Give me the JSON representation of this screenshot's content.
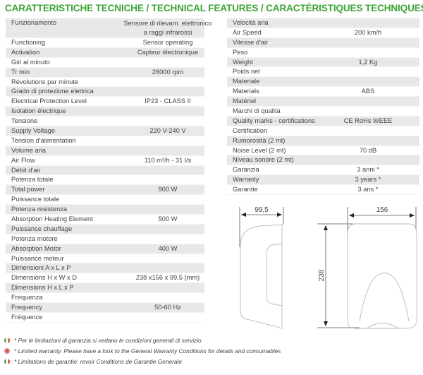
{
  "title": "CARATTERISTICHE TECNICHE / TECHNICAL FEATURES / CARACTÉRISTIQUES TECHNIQUES",
  "left_table": [
    {
      "label": "Funzionamento",
      "value": "Sensore di rilevam. elettronico\na raggi infrarossi"
    },
    {
      "label": "Functioning",
      "value": "Sensor operating"
    },
    {
      "label": "Activation",
      "value": "Capteur électronique"
    },
    {
      "label": "Giri al minuto",
      "value": ""
    },
    {
      "label": "Tr min",
      "value": "28000 rpm"
    },
    {
      "label": "Révolutions par minute",
      "value": ""
    },
    {
      "label": "Grado di protezione elettrica",
      "value": ""
    },
    {
      "label": "Electrical Protection Level",
      "value": "IP23 - CLASS II"
    },
    {
      "label": "Isolation électrique",
      "value": ""
    },
    {
      "label": "Tensione",
      "value": ""
    },
    {
      "label": "Supply Voltage",
      "value": "220 V-240 V"
    },
    {
      "label": "Tension d'alimentation",
      "value": ""
    },
    {
      "label": "Volume aria",
      "value": ""
    },
    {
      "label": "Air Flow",
      "value": "110 m³/h - 31 l/s"
    },
    {
      "label": "Débit d'air",
      "value": ""
    },
    {
      "label": "Potenza totale",
      "value": ""
    },
    {
      "label": "Total power",
      "value": "900 W"
    },
    {
      "label": "Puissance totale",
      "value": ""
    },
    {
      "label": "Potenza resistenza",
      "value": ""
    },
    {
      "label": "Absorption Heating Element",
      "value": "500 W"
    },
    {
      "label": "Puissance chauffage",
      "value": ""
    },
    {
      "label": "Potenza motore",
      "value": ""
    },
    {
      "label": "Absorption Motor",
      "value": "400 W"
    },
    {
      "label": "Puissance moteur",
      "value": ""
    },
    {
      "label": "Dimensioni A x L x P",
      "value": ""
    },
    {
      "label": "Dimensions H x W x D",
      "value": "238 x156 x 99,5 (mm)"
    },
    {
      "label": "Dimensions H x L x P",
      "value": ""
    },
    {
      "label": "Frequenza",
      "value": ""
    },
    {
      "label": "Frequency",
      "value": "50-60 Hz"
    },
    {
      "label": "Fréquence",
      "value": ""
    }
  ],
  "right_table": [
    {
      "label": "Velocità aria",
      "value": ""
    },
    {
      "label": "Air Speed",
      "value": "200 km/h"
    },
    {
      "label": "Vitesse d'air",
      "value": ""
    },
    {
      "label": "Peso",
      "value": ""
    },
    {
      "label": "Weight",
      "value": "1,2 Kg"
    },
    {
      "label": "Poids net",
      "value": ""
    },
    {
      "label": "Materiale",
      "value": ""
    },
    {
      "label": "Materials",
      "value": "ABS"
    },
    {
      "label": "Matériel",
      "value": ""
    },
    {
      "label": "Marchi di qualità",
      "value": ""
    },
    {
      "label": "Quality marks - certifications",
      "value": "CE RoHs WEEE"
    },
    {
      "label": "Certification",
      "value": ""
    },
    {
      "label": "Rumorosità (2 mt)",
      "value": ""
    },
    {
      "label": "Noise Level (2 mt)",
      "value": "70 dB"
    },
    {
      "label": "Niveau sonore (2 mt)",
      "value": ""
    },
    {
      "label": "Garanzia",
      "value": "3 anni *"
    },
    {
      "label": "Warranty",
      "value": "3 years *"
    },
    {
      "label": "Garantie",
      "value": "3 ans *"
    }
  ],
  "diagram": {
    "depth": "99,5",
    "width": "156",
    "height": "238"
  },
  "notes": [
    {
      "flag": "italy-flag-icon",
      "text": "* Per le limitazioni di garanzia si vedano le condizioni generali di servizio"
    },
    {
      "flag": "uk-flag-icon",
      "text": "* Limited warranty. Please have a look to the General Warranty Conditions for details and consumables"
    },
    {
      "flag": "france-flag-icon",
      "text": "* Limitations de garantie: revoir Conditions de Garantie Generale"
    }
  ],
  "colors": {
    "title": "#3aa335",
    "row_shade": "#e8e8e8"
  }
}
